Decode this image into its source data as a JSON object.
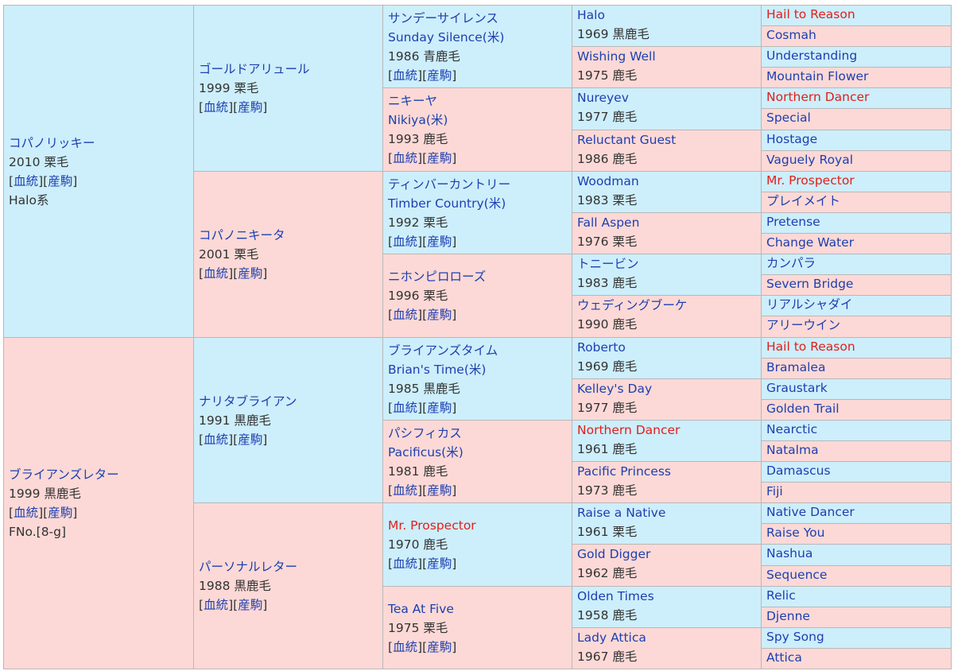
{
  "colors": {
    "male_bg": "#cdeefb",
    "female_bg": "#fcd9d6",
    "link": "#1d3fb0",
    "highlight": "#e0201c",
    "text": "#333333"
  },
  "link_labels": {
    "ketto": "血統",
    "sanku": "産駒"
  },
  "gen1": [
    {
      "sex": "male",
      "name": "コパノリッキー",
      "line": "2010 栗毛",
      "links": true,
      "extra": "Halo系"
    },
    {
      "sex": "female",
      "name": "ブライアンズレター",
      "line": "1999 黒鹿毛",
      "links": true,
      "extra": "FNo.[8-g]"
    }
  ],
  "gen2": [
    {
      "sex": "male",
      "name": "ゴールドアリュール",
      "line": "1999 栗毛",
      "links": true
    },
    {
      "sex": "female",
      "name": "コパノニキータ",
      "line": "2001 栗毛",
      "links": true
    },
    {
      "sex": "male",
      "name": "ナリタブライアン",
      "line": "1991 黒鹿毛",
      "links": true
    },
    {
      "sex": "female",
      "name": "パーソナルレター",
      "line": "1988 黒鹿毛",
      "links": true
    }
  ],
  "gen3": [
    {
      "sex": "male",
      "name": "サンデーサイレンス",
      "name2": "Sunday Silence(米)",
      "line": "1986 青鹿毛",
      "links": true
    },
    {
      "sex": "female",
      "name": "ニキーヤ",
      "name2": "Nikiya(米)",
      "line": "1993 鹿毛",
      "links": true
    },
    {
      "sex": "male",
      "name": "ティンバーカントリー",
      "name2": "Timber Country(米)",
      "line": "1992 栗毛",
      "links": true
    },
    {
      "sex": "female",
      "name": "ニホンピロローズ",
      "line": "1996 栗毛",
      "links": true
    },
    {
      "sex": "male",
      "name": "ブライアンズタイム",
      "name2": "Brian's Time(米)",
      "line": "1985 黒鹿毛",
      "links": true
    },
    {
      "sex": "female",
      "name": "パシフィカス",
      "name2": "Pacificus(米)",
      "line": "1981 鹿毛",
      "links": true
    },
    {
      "sex": "male",
      "name": "Mr. Prospector",
      "line": "1970 鹿毛",
      "links": true,
      "highlight": true
    },
    {
      "sex": "female",
      "name": "Tea At Five",
      "line": "1975 栗毛",
      "links": true
    }
  ],
  "gen4": [
    {
      "sex": "male",
      "name": "Halo",
      "line": "1969 黒鹿毛"
    },
    {
      "sex": "female",
      "name": "Wishing Well",
      "line": "1975 鹿毛"
    },
    {
      "sex": "male",
      "name": "Nureyev",
      "line": "1977 鹿毛"
    },
    {
      "sex": "female",
      "name": "Reluctant Guest",
      "line": "1986 鹿毛"
    },
    {
      "sex": "male",
      "name": "Woodman",
      "line": "1983 栗毛"
    },
    {
      "sex": "female",
      "name": "Fall Aspen",
      "line": "1976 栗毛"
    },
    {
      "sex": "male",
      "name": "トニービン",
      "line": "1983 鹿毛"
    },
    {
      "sex": "female",
      "name": "ウェディングブーケ",
      "line": "1990 鹿毛"
    },
    {
      "sex": "male",
      "name": "Roberto",
      "line": "1969 鹿毛"
    },
    {
      "sex": "female",
      "name": "Kelley's Day",
      "line": "1977 鹿毛"
    },
    {
      "sex": "male",
      "name": "Northern Dancer",
      "line": "1961 鹿毛",
      "highlight": true
    },
    {
      "sex": "female",
      "name": "Pacific Princess",
      "line": "1973 鹿毛"
    },
    {
      "sex": "male",
      "name": "Raise a Native",
      "line": "1961 栗毛"
    },
    {
      "sex": "female",
      "name": "Gold Digger",
      "line": "1962 鹿毛"
    },
    {
      "sex": "male",
      "name": "Olden Times",
      "line": "1958 鹿毛"
    },
    {
      "sex": "female",
      "name": "Lady Attica",
      "line": "1967 鹿毛"
    }
  ],
  "gen5": [
    {
      "sex": "male",
      "name": "Hail to Reason",
      "highlight": true
    },
    {
      "sex": "female",
      "name": "Cosmah"
    },
    {
      "sex": "male",
      "name": "Understanding"
    },
    {
      "sex": "female",
      "name": "Mountain Flower"
    },
    {
      "sex": "male",
      "name": "Northern Dancer",
      "highlight": true
    },
    {
      "sex": "female",
      "name": "Special"
    },
    {
      "sex": "male",
      "name": "Hostage"
    },
    {
      "sex": "female",
      "name": "Vaguely Royal"
    },
    {
      "sex": "male",
      "name": "Mr. Prospector",
      "highlight": true
    },
    {
      "sex": "female",
      "name": "プレイメイト"
    },
    {
      "sex": "male",
      "name": "Pretense"
    },
    {
      "sex": "female",
      "name": "Change Water"
    },
    {
      "sex": "male",
      "name": "カンパラ"
    },
    {
      "sex": "female",
      "name": "Severn Bridge"
    },
    {
      "sex": "male",
      "name": "リアルシャダイ"
    },
    {
      "sex": "female",
      "name": "アリーウイン"
    },
    {
      "sex": "male",
      "name": "Hail to Reason",
      "highlight": true
    },
    {
      "sex": "female",
      "name": "Bramalea"
    },
    {
      "sex": "male",
      "name": "Graustark"
    },
    {
      "sex": "female",
      "name": "Golden Trail"
    },
    {
      "sex": "male",
      "name": "Nearctic"
    },
    {
      "sex": "female",
      "name": "Natalma"
    },
    {
      "sex": "male",
      "name": "Damascus"
    },
    {
      "sex": "female",
      "name": "Fiji"
    },
    {
      "sex": "male",
      "name": "Native Dancer"
    },
    {
      "sex": "female",
      "name": "Raise You"
    },
    {
      "sex": "male",
      "name": "Nashua"
    },
    {
      "sex": "female",
      "name": "Sequence"
    },
    {
      "sex": "male",
      "name": "Relic"
    },
    {
      "sex": "female",
      "name": "Djenne"
    },
    {
      "sex": "male",
      "name": "Spy Song"
    },
    {
      "sex": "female",
      "name": "Attica"
    }
  ]
}
